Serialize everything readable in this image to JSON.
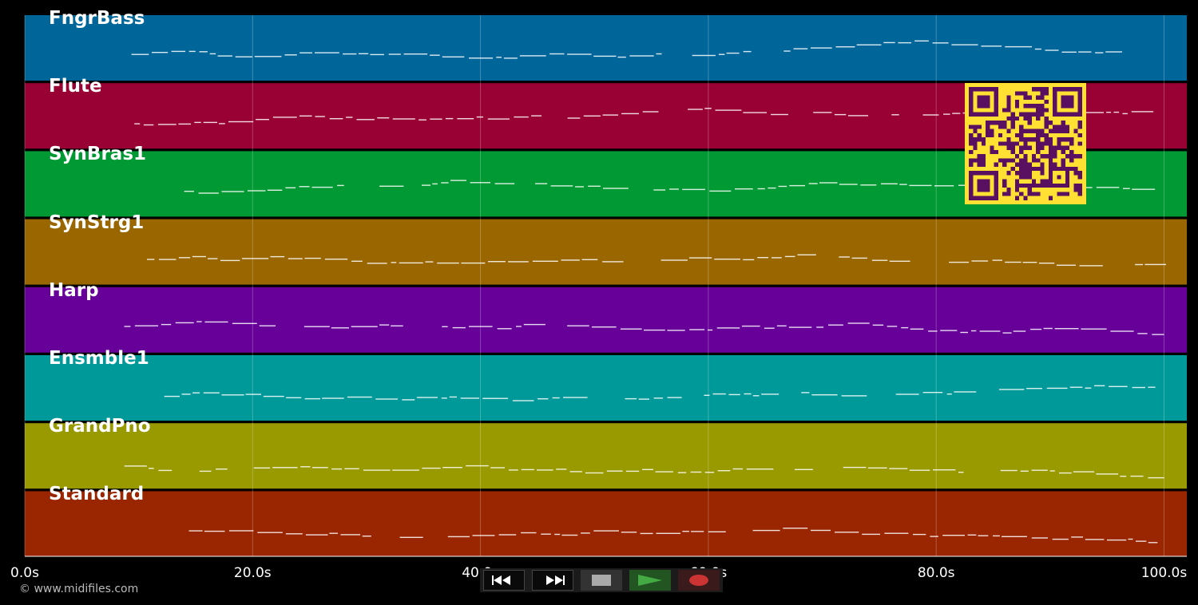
{
  "tracks": [
    {
      "name": "FngrBass",
      "color": "#006699"
    },
    {
      "name": "Flute",
      "color": "#990033"
    },
    {
      "name": "SynBras1",
      "color": "#009933"
    },
    {
      "name": "SynStrg1",
      "color": "#996600"
    },
    {
      "name": "Harp",
      "color": "#660099"
    },
    {
      "name": "Ensmble1",
      "color": "#009999"
    },
    {
      "name": "GrandPno",
      "color": "#999900"
    },
    {
      "name": "Standard",
      "color": "#992600"
    }
  ],
  "timeline": {
    "ticks": [
      "0.0s",
      "20.0s",
      "40.0s",
      "60.0s",
      "80.0s",
      "100.0s"
    ],
    "tick_values": [
      0,
      20,
      40,
      60,
      80,
      100
    ],
    "range": [
      0,
      102
    ]
  },
  "copyright": "© www.midifiles.com",
  "transport": {
    "rewind": {
      "icon": "rewind-icon"
    },
    "fast_forward": {
      "icon": "fast-forward-icon"
    },
    "stop": {
      "icon": "stop-icon"
    },
    "play": {
      "icon": "play-icon",
      "color": "#44aa44"
    },
    "record": {
      "icon": "record-icon",
      "color": "#cc3333"
    }
  },
  "overlay": {
    "icon": "qr-code-icon",
    "fg": "#5a1060",
    "bg": "#ffe033"
  }
}
